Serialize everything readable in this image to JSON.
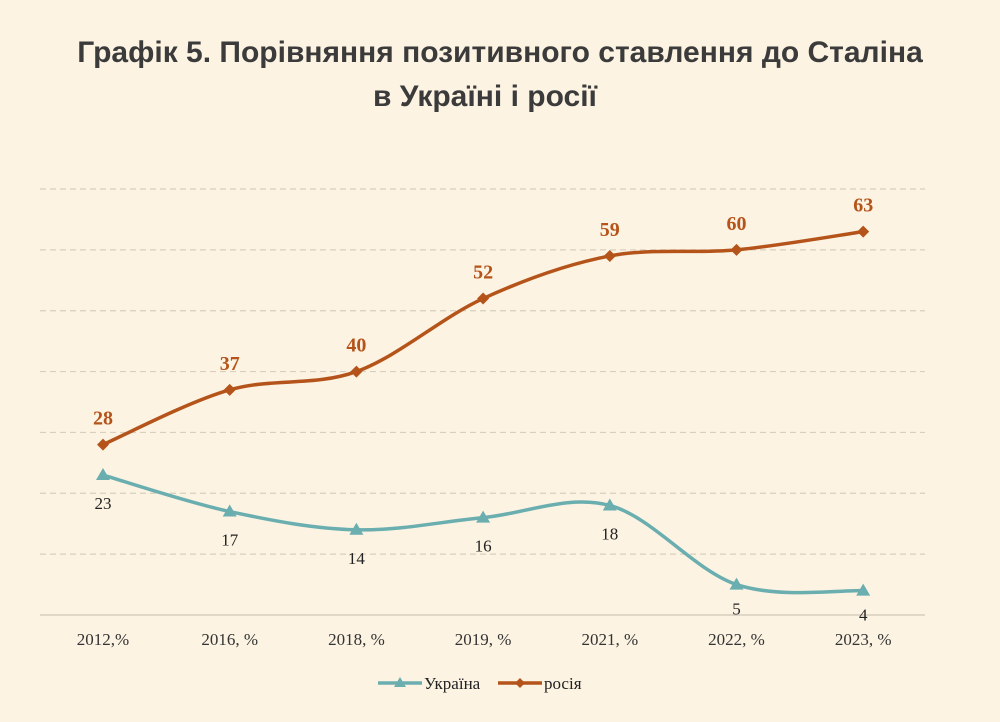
{
  "chart_data": {
    "type": "line",
    "title": "Графік 5. Порівняння позитивного ставлення до Сталіна",
    "subtitle": "в Україні і росії",
    "categories": [
      "2012,%",
      "2016, %",
      "2018, %",
      "2019, %",
      "2021, %",
      "2022, %",
      "2023, %"
    ],
    "series": [
      {
        "name": "Україна",
        "values": [
          23,
          17,
          14,
          16,
          18,
          5,
          4
        ],
        "color": "#6aaeb0",
        "marker": "triangle"
      },
      {
        "name": "росія",
        "values": [
          28,
          37,
          40,
          52,
          59,
          60,
          63
        ],
        "color": "#b5541a",
        "marker": "diamond"
      }
    ],
    "ylim": [
      0,
      70
    ],
    "grid": true,
    "legend": "bottom",
    "xlabel": "",
    "ylabel": ""
  }
}
